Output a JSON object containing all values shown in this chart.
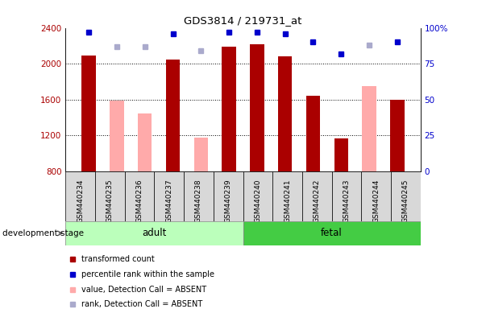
{
  "title": "GDS3814 / 219731_at",
  "samples": [
    "GSM440234",
    "GSM440235",
    "GSM440236",
    "GSM440237",
    "GSM440238",
    "GSM440239",
    "GSM440240",
    "GSM440241",
    "GSM440242",
    "GSM440243",
    "GSM440244",
    "GSM440245"
  ],
  "transformed_count": [
    2090,
    null,
    null,
    2050,
    null,
    2190,
    2220,
    2080,
    1640,
    1170,
    null,
    1595
  ],
  "absent_value": [
    null,
    1590,
    1450,
    null,
    1175,
    null,
    null,
    null,
    null,
    null,
    1750,
    null
  ],
  "percentile_rank": [
    97,
    null,
    null,
    96,
    null,
    97,
    97,
    96,
    90,
    82,
    null,
    90
  ],
  "absent_rank": [
    null,
    87,
    87,
    null,
    84,
    null,
    null,
    null,
    null,
    null,
    88,
    null
  ],
  "ylim": [
    800,
    2400
  ],
  "yticks": [
    800,
    1200,
    1600,
    2000,
    2400
  ],
  "right_yticks": [
    0,
    25,
    50,
    75,
    100
  ],
  "right_ylim": [
    0,
    100
  ],
  "bar_color_present": "#aa0000",
  "bar_color_absent": "#ffaaaa",
  "dot_color_present": "#0000cc",
  "dot_color_absent": "#aaaacc",
  "adult_color": "#bbffbb",
  "fetal_color": "#44cc44",
  "tick_bg_color": "#d8d8d8",
  "stage_label": "development stage",
  "background_color": "#ffffff",
  "grid_lines": [
    2000,
    1600,
    1200
  ],
  "legend_items": [
    {
      "color": "#aa0000",
      "label": "transformed count"
    },
    {
      "color": "#0000cc",
      "label": "percentile rank within the sample"
    },
    {
      "color": "#ffaaaa",
      "label": "value, Detection Call = ABSENT"
    },
    {
      "color": "#aaaacc",
      "label": "rank, Detection Call = ABSENT"
    }
  ]
}
